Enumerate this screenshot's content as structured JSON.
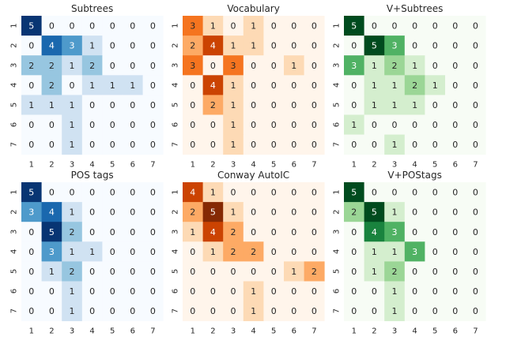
{
  "chart_data": [
    {
      "type": "heatmap",
      "title": "Subtrees",
      "colormap": "Blues",
      "x": [
        "1",
        "2",
        "3",
        "4",
        "5",
        "6",
        "7"
      ],
      "y": [
        "1",
        "2",
        "3",
        "4",
        "5",
        "6",
        "7"
      ],
      "values": [
        [
          5,
          0,
          0,
          0,
          0,
          0,
          0
        ],
        [
          0,
          4,
          3,
          1,
          0,
          0,
          0
        ],
        [
          2,
          2,
          1,
          2,
          0,
          0,
          0
        ],
        [
          0,
          2,
          0,
          1,
          1,
          1,
          0
        ],
        [
          1,
          1,
          1,
          0,
          0,
          0,
          0
        ],
        [
          0,
          0,
          1,
          0,
          0,
          0,
          0
        ],
        [
          0,
          0,
          1,
          0,
          0,
          0,
          0
        ]
      ]
    },
    {
      "type": "heatmap",
      "title": "Vocabulary",
      "colormap": "Oranges",
      "x": [
        "1",
        "2",
        "3",
        "4",
        "5",
        "6",
        "7"
      ],
      "y": [
        "1",
        "2",
        "3",
        "4",
        "5",
        "6",
        "7"
      ],
      "values": [
        [
          3,
          1,
          0,
          1,
          0,
          0,
          0
        ],
        [
          2,
          4,
          1,
          1,
          0,
          0,
          0
        ],
        [
          3,
          0,
          3,
          0,
          0,
          1,
          0
        ],
        [
          0,
          4,
          1,
          0,
          0,
          0,
          0
        ],
        [
          0,
          2,
          1,
          0,
          0,
          0,
          0
        ],
        [
          0,
          0,
          1,
          0,
          0,
          0,
          0
        ],
        [
          0,
          0,
          1,
          0,
          0,
          0,
          0
        ]
      ]
    },
    {
      "type": "heatmap",
      "title": "V+Subtrees",
      "colormap": "Greens",
      "x": [
        "1",
        "2",
        "3",
        "4",
        "5",
        "6",
        "7"
      ],
      "y": [
        "1",
        "2",
        "3",
        "4",
        "5",
        "6",
        "7"
      ],
      "values": [
        [
          5,
          0,
          0,
          0,
          0,
          0,
          0
        ],
        [
          0,
          5,
          3,
          0,
          0,
          0,
          0
        ],
        [
          3,
          1,
          2,
          1,
          0,
          0,
          0
        ],
        [
          0,
          1,
          1,
          2,
          1,
          0,
          0
        ],
        [
          0,
          1,
          1,
          1,
          0,
          0,
          0
        ],
        [
          1,
          0,
          0,
          0,
          0,
          0,
          0
        ],
        [
          0,
          0,
          1,
          0,
          0,
          0,
          0
        ]
      ]
    },
    {
      "type": "heatmap",
      "title": "POS tags",
      "colormap": "Blues",
      "x": [
        "1",
        "2",
        "3",
        "4",
        "5",
        "6",
        "7"
      ],
      "y": [
        "1",
        "2",
        "3",
        "4",
        "5",
        "6",
        "7"
      ],
      "values": [
        [
          5,
          0,
          0,
          0,
          0,
          0,
          0
        ],
        [
          3,
          4,
          1,
          0,
          0,
          0,
          0
        ],
        [
          0,
          5,
          2,
          0,
          0,
          0,
          0
        ],
        [
          0,
          3,
          1,
          1,
          0,
          0,
          0
        ],
        [
          0,
          1,
          2,
          0,
          0,
          0,
          0
        ],
        [
          0,
          0,
          1,
          0,
          0,
          0,
          0
        ],
        [
          0,
          0,
          1,
          0,
          0,
          0,
          0
        ]
      ]
    },
    {
      "type": "heatmap",
      "title": "Conway AutoIC",
      "colormap": "Oranges",
      "x": [
        "1",
        "2",
        "3",
        "4",
        "5",
        "6",
        "7"
      ],
      "y": [
        "1",
        "2",
        "3",
        "4",
        "5",
        "6",
        "7"
      ],
      "values": [
        [
          4,
          1,
          0,
          0,
          0,
          0,
          0
        ],
        [
          2,
          5,
          1,
          0,
          0,
          0,
          0
        ],
        [
          1,
          4,
          2,
          0,
          0,
          0,
          0
        ],
        [
          0,
          1,
          2,
          2,
          0,
          0,
          0
        ],
        [
          0,
          0,
          0,
          0,
          0,
          1,
          2
        ],
        [
          0,
          0,
          0,
          1,
          0,
          0,
          0
        ],
        [
          0,
          0,
          0,
          1,
          0,
          0,
          0
        ]
      ]
    },
    {
      "type": "heatmap",
      "title": "V+POStags",
      "colormap": "Greens",
      "x": [
        "1",
        "2",
        "3",
        "4",
        "5",
        "6",
        "7"
      ],
      "y": [
        "1",
        "2",
        "3",
        "4",
        "5",
        "6",
        "7"
      ],
      "values": [
        [
          5,
          0,
          0,
          0,
          0,
          0,
          0
        ],
        [
          2,
          5,
          1,
          0,
          0,
          0,
          0
        ],
        [
          0,
          4,
          3,
          0,
          0,
          0,
          0
        ],
        [
          0,
          1,
          1,
          3,
          0,
          0,
          0
        ],
        [
          0,
          1,
          2,
          0,
          0,
          0,
          0
        ],
        [
          0,
          0,
          1,
          0,
          0,
          0,
          0
        ],
        [
          0,
          0,
          1,
          0,
          0,
          0,
          0
        ]
      ]
    }
  ]
}
